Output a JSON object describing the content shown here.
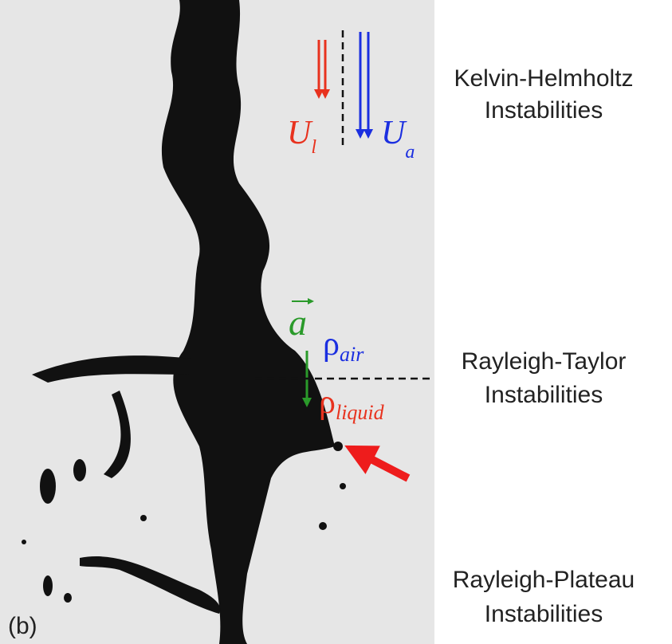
{
  "panel_label": "(b)",
  "labels": [
    {
      "lines": [
        "Kelvin-Helmholtz",
        "Instabilities"
      ]
    },
    {
      "lines": [
        "Rayleigh-Taylor",
        "Instabilities"
      ]
    },
    {
      "lines": [
        "Rayleigh-Plateau",
        "Instabilities"
      ]
    }
  ],
  "symbols": {
    "liquid_velocity": {
      "base": "U",
      "subscript": "l"
    },
    "air_velocity": {
      "base": "U",
      "subscript": "a"
    },
    "acceleration": {
      "base": "a"
    },
    "air_density": {
      "base": "ρ",
      "subscript": "air"
    },
    "liquid_density": {
      "base": "ρ",
      "subscript": "liquid"
    }
  }
}
